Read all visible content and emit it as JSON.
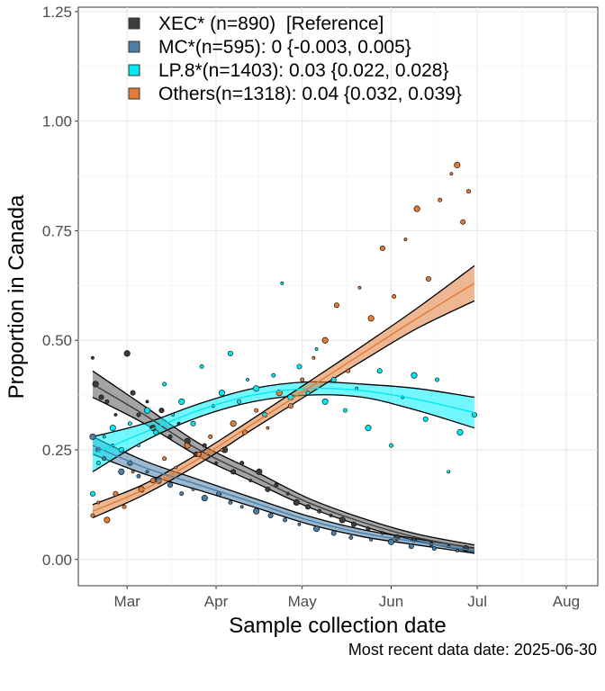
{
  "chart_data": {
    "type": "scatter",
    "xlabel": "Sample collection date",
    "ylabel": "Proportion in Canada",
    "caption": "Most recent data date: 2025-06-30",
    "x_tick_labels": [
      "Mar",
      "Apr",
      "May",
      "Jun",
      "Jul",
      "Aug"
    ],
    "x_tick_dates": [
      "2025-03-01",
      "2025-04-01",
      "2025-05-01",
      "2025-06-01",
      "2025-07-01",
      "2025-08-01"
    ],
    "xlim": [
      "2025-02-12",
      "2025-08-12"
    ],
    "y_ticks": [
      "0.00",
      "0.25",
      "0.50",
      "0.75",
      "1.00",
      "1.25"
    ],
    "ylim": [
      -0.06,
      1.26
    ],
    "grid": true,
    "legend_position": "top-left",
    "fit_range": [
      "2025-02-17",
      "2025-06-30"
    ],
    "series": [
      {
        "name": "XEC* (n=890)  [Reference]",
        "color": "#3d3d3d",
        "band_color": "#5a5a5a",
        "fit": [
          [
            "2025-02-17",
            0.4,
            0.37,
            0.43
          ],
          [
            "2025-03-07",
            0.33,
            0.31,
            0.35
          ],
          [
            "2025-03-26",
            0.25,
            0.235,
            0.265
          ],
          [
            "2025-04-14",
            0.19,
            0.177,
            0.203
          ],
          [
            "2025-05-03",
            0.13,
            0.12,
            0.14
          ],
          [
            "2025-05-22",
            0.085,
            0.076,
            0.094
          ],
          [
            "2025-06-10",
            0.05,
            0.042,
            0.058
          ],
          [
            "2025-06-30",
            0.025,
            0.017,
            0.033
          ]
        ],
        "points": [
          [
            "2025-02-17",
            0.46
          ],
          [
            "2025-02-18",
            0.4
          ],
          [
            "2025-02-20",
            0.37
          ],
          [
            "2025-02-22",
            0.36
          ],
          [
            "2025-02-25",
            0.33
          ],
          [
            "2025-03-01",
            0.47
          ],
          [
            "2025-03-03",
            0.38
          ],
          [
            "2025-03-05",
            0.33
          ],
          [
            "2025-03-08",
            0.36
          ],
          [
            "2025-03-10",
            0.3
          ],
          [
            "2025-03-13",
            0.34
          ],
          [
            "2025-03-16",
            0.28
          ],
          [
            "2025-03-19",
            0.31
          ],
          [
            "2025-03-22",
            0.27
          ],
          [
            "2025-03-25",
            0.24
          ],
          [
            "2025-03-28",
            0.26
          ],
          [
            "2025-04-01",
            0.22
          ],
          [
            "2025-04-04",
            0.25
          ],
          [
            "2025-04-07",
            0.2
          ],
          [
            "2025-04-10",
            0.22
          ],
          [
            "2025-04-13",
            0.18
          ],
          [
            "2025-04-16",
            0.2
          ],
          [
            "2025-04-19",
            0.16
          ],
          [
            "2025-04-22",
            0.17
          ],
          [
            "2025-04-26",
            0.15
          ],
          [
            "2025-04-29",
            0.13
          ],
          [
            "2025-05-03",
            0.12
          ],
          [
            "2025-05-07",
            0.11
          ],
          [
            "2025-05-11",
            0.1
          ],
          [
            "2025-05-15",
            0.09
          ],
          [
            "2025-05-19",
            0.08
          ],
          [
            "2025-05-24",
            0.07
          ],
          [
            "2025-05-29",
            0.06
          ],
          [
            "2025-06-03",
            0.05
          ],
          [
            "2025-06-09",
            0.045
          ],
          [
            "2025-06-15",
            0.035
          ],
          [
            "2025-06-21",
            0.03
          ],
          [
            "2025-06-27",
            0.025
          ]
        ]
      },
      {
        "name": "MC*(n=595): 0 {-0.003, 0.005}",
        "color": "#4a7fa8",
        "band_color": "#4a7fa8",
        "fit": [
          [
            "2025-02-17",
            0.26,
            0.24,
            0.28
          ],
          [
            "2025-03-07",
            0.21,
            0.195,
            0.225
          ],
          [
            "2025-03-26",
            0.17,
            0.158,
            0.182
          ],
          [
            "2025-04-14",
            0.13,
            0.12,
            0.14
          ],
          [
            "2025-05-03",
            0.09,
            0.081,
            0.099
          ],
          [
            "2025-05-22",
            0.06,
            0.052,
            0.068
          ],
          [
            "2025-06-10",
            0.04,
            0.033,
            0.047
          ],
          [
            "2025-06-30",
            0.02,
            0.014,
            0.026
          ]
        ],
        "points": [
          [
            "2025-02-17",
            0.28
          ],
          [
            "2025-02-19",
            0.25
          ],
          [
            "2025-02-21",
            0.23
          ],
          [
            "2025-02-24",
            0.26
          ],
          [
            "2025-02-27",
            0.2
          ],
          [
            "2025-03-02",
            0.22
          ],
          [
            "2025-03-05",
            0.19
          ],
          [
            "2025-03-08",
            0.2
          ],
          [
            "2025-03-12",
            0.18
          ],
          [
            "2025-03-16",
            0.17
          ],
          [
            "2025-03-20",
            0.15
          ],
          [
            "2025-03-24",
            0.16
          ],
          [
            "2025-03-28",
            0.14
          ],
          [
            "2025-04-02",
            0.15
          ],
          [
            "2025-04-06",
            0.13
          ],
          [
            "2025-04-10",
            0.12
          ],
          [
            "2025-04-15",
            0.11
          ],
          [
            "2025-04-20",
            0.1
          ],
          [
            "2025-04-25",
            0.09
          ],
          [
            "2025-04-30",
            0.08
          ],
          [
            "2025-05-06",
            0.07
          ],
          [
            "2025-05-12",
            0.06
          ],
          [
            "2025-05-18",
            0.05
          ],
          [
            "2025-05-25",
            0.045
          ],
          [
            "2025-06-01",
            0.04
          ],
          [
            "2025-06-08",
            0.03
          ],
          [
            "2025-06-16",
            0.025
          ],
          [
            "2025-06-24",
            0.02
          ]
        ]
      },
      {
        "name": "LP.8*(n=1403): 0.03 {0.022, 0.028}",
        "color": "#00e8f0",
        "band_color": "#00f0ff",
        "fit": [
          [
            "2025-02-17",
            0.24,
            0.2,
            0.28
          ],
          [
            "2025-03-07",
            0.29,
            0.27,
            0.31
          ],
          [
            "2025-03-26",
            0.34,
            0.325,
            0.355
          ],
          [
            "2025-04-14",
            0.375,
            0.36,
            0.39
          ],
          [
            "2025-05-03",
            0.39,
            0.375,
            0.405
          ],
          [
            "2025-05-22",
            0.385,
            0.37,
            0.4
          ],
          [
            "2025-06-10",
            0.365,
            0.34,
            0.39
          ],
          [
            "2025-06-30",
            0.335,
            0.3,
            0.37
          ]
        ],
        "points": [
          [
            "2025-02-17",
            0.15
          ],
          [
            "2025-02-19",
            0.22
          ],
          [
            "2025-02-21",
            0.28
          ],
          [
            "2025-02-24",
            0.3
          ],
          [
            "2025-02-27",
            0.25
          ],
          [
            "2025-03-02",
            0.31
          ],
          [
            "2025-03-05",
            0.26
          ],
          [
            "2025-03-08",
            0.34
          ],
          [
            "2025-03-11",
            0.29
          ],
          [
            "2025-03-14",
            0.4
          ],
          [
            "2025-03-17",
            0.33
          ],
          [
            "2025-03-20",
            0.36
          ],
          [
            "2025-03-24",
            0.31
          ],
          [
            "2025-03-27",
            0.44
          ],
          [
            "2025-03-31",
            0.35
          ],
          [
            "2025-04-03",
            0.38
          ],
          [
            "2025-04-06",
            0.47
          ],
          [
            "2025-04-09",
            0.36
          ],
          [
            "2025-04-12",
            0.41
          ],
          [
            "2025-04-15",
            0.39
          ],
          [
            "2025-04-18",
            0.33
          ],
          [
            "2025-04-21",
            0.42
          ],
          [
            "2025-04-24",
            0.63
          ],
          [
            "2025-04-27",
            0.37
          ],
          [
            "2025-04-30",
            0.44
          ],
          [
            "2025-05-03",
            0.38
          ],
          [
            "2025-05-06",
            0.48
          ],
          [
            "2025-05-09",
            0.36
          ],
          [
            "2025-05-12",
            0.41
          ],
          [
            "2025-05-16",
            0.34
          ],
          [
            "2025-05-20",
            0.39
          ],
          [
            "2025-05-24",
            0.3
          ],
          [
            "2025-05-28",
            0.43
          ],
          [
            "2025-06-01",
            0.26
          ],
          [
            "2025-06-05",
            0.37
          ],
          [
            "2025-06-09",
            0.42
          ],
          [
            "2025-06-13",
            0.32
          ],
          [
            "2025-06-17",
            0.41
          ],
          [
            "2025-06-21",
            0.2
          ],
          [
            "2025-06-25",
            0.29
          ],
          [
            "2025-06-30",
            0.33
          ]
        ]
      },
      {
        "name": "Others(n=1318): 0.04 {0.032, 0.039}",
        "color": "#e07b39",
        "band_color": "#e07b39",
        "fit": [
          [
            "2025-02-17",
            0.11,
            0.095,
            0.125
          ],
          [
            "2025-03-07",
            0.16,
            0.148,
            0.172
          ],
          [
            "2025-03-26",
            0.23,
            0.218,
            0.242
          ],
          [
            "2025-04-14",
            0.31,
            0.298,
            0.322
          ],
          [
            "2025-05-03",
            0.39,
            0.376,
            0.404
          ],
          [
            "2025-05-22",
            0.47,
            0.453,
            0.487
          ],
          [
            "2025-06-10",
            0.55,
            0.527,
            0.573
          ],
          [
            "2025-06-30",
            0.63,
            0.59,
            0.67
          ]
        ],
        "points": [
          [
            "2025-02-17",
            0.1
          ],
          [
            "2025-02-19",
            0.13
          ],
          [
            "2025-02-22",
            0.09
          ],
          [
            "2025-02-25",
            0.15
          ],
          [
            "2025-02-28",
            0.12
          ],
          [
            "2025-03-03",
            0.2
          ],
          [
            "2025-03-06",
            0.16
          ],
          [
            "2025-03-10",
            0.18
          ],
          [
            "2025-03-14",
            0.23
          ],
          [
            "2025-03-18",
            0.21
          ],
          [
            "2025-03-22",
            0.26
          ],
          [
            "2025-03-26",
            0.24
          ],
          [
            "2025-03-30",
            0.28
          ],
          [
            "2025-04-03",
            0.25
          ],
          [
            "2025-04-07",
            0.31
          ],
          [
            "2025-04-11",
            0.29
          ],
          [
            "2025-04-15",
            0.34
          ],
          [
            "2025-04-19",
            0.3
          ],
          [
            "2025-04-23",
            0.38
          ],
          [
            "2025-04-27",
            0.35
          ],
          [
            "2025-05-01",
            0.41
          ],
          [
            "2025-05-05",
            0.46
          ],
          [
            "2025-05-09",
            0.5
          ],
          [
            "2025-05-13",
            0.58
          ],
          [
            "2025-05-17",
            0.43
          ],
          [
            "2025-05-21",
            0.62
          ],
          [
            "2025-05-25",
            0.55
          ],
          [
            "2025-05-29",
            0.71
          ],
          [
            "2025-06-02",
            0.6
          ],
          [
            "2025-06-06",
            0.73
          ],
          [
            "2025-06-10",
            0.8
          ],
          [
            "2025-06-14",
            0.64
          ],
          [
            "2025-06-18",
            0.82
          ],
          [
            "2025-06-22",
            0.88
          ],
          [
            "2025-06-24",
            0.9
          ],
          [
            "2025-06-26",
            0.77
          ],
          [
            "2025-06-28",
            0.84
          ]
        ]
      }
    ]
  }
}
